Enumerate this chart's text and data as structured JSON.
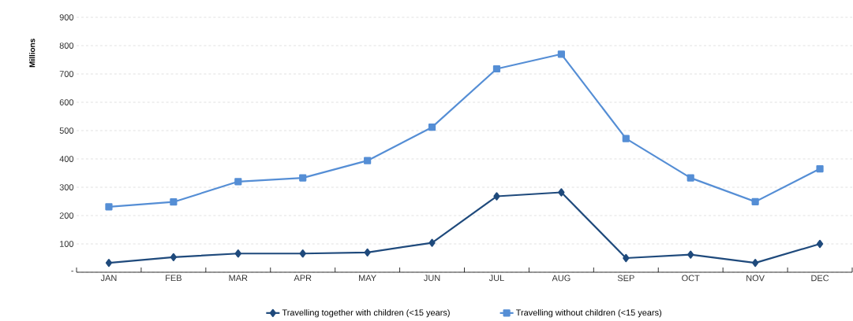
{
  "chart_data": {
    "type": "line",
    "ylabel": "Millions",
    "categories": [
      "JAN",
      "FEB",
      "MAR",
      "APR",
      "MAY",
      "JUN",
      "JUL",
      "AUG",
      "SEP",
      "OCT",
      "NOV",
      "DEC"
    ],
    "ylim": [
      0,
      900
    ],
    "yticks": [
      {
        "value": 0,
        "label": "-"
      },
      100,
      200,
      300,
      400,
      500,
      600,
      700,
      800,
      900
    ],
    "grid": "y",
    "legend": "bottom",
    "line_style": "solid",
    "series": [
      {
        "name": "Travelling together with children (<15 years)",
        "color": "#1f4a7c",
        "marker": "diamond",
        "values": [
          33,
          53,
          66,
          66,
          70,
          104,
          268,
          282,
          50,
          62,
          33,
          100
        ]
      },
      {
        "name": "Travelling without children (<15 years)",
        "color": "#558ed5",
        "marker": "square",
        "values": [
          231,
          248,
          320,
          333,
          394,
          512,
          718,
          770,
          472,
          333,
          249,
          365
        ]
      }
    ]
  }
}
